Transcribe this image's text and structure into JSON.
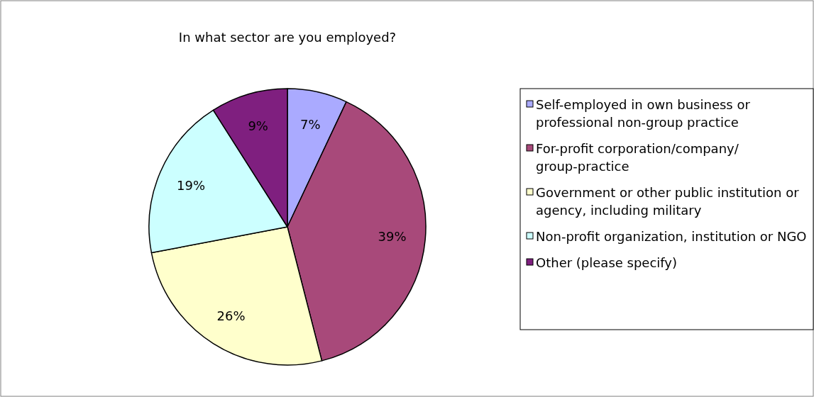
{
  "chart_data": {
    "type": "pie",
    "title": "In what sector are you employed?",
    "categories": [
      "Self-employed in own business or professional non-group practice",
      "For-profit corporation/company/group-practice",
      "Government or other public institution or agency, including military",
      "Non-profit organization, institution or NGO",
      "Other (please specify)"
    ],
    "values": [
      7,
      39,
      26,
      19,
      9
    ],
    "colors": [
      "#aaaaff",
      "#a8497a",
      "#ffffcc",
      "#ccffff",
      "#7f1f7f"
    ],
    "value_labels": [
      "7%",
      "39%",
      "26%",
      "19%",
      "9%"
    ],
    "legend": "right"
  }
}
